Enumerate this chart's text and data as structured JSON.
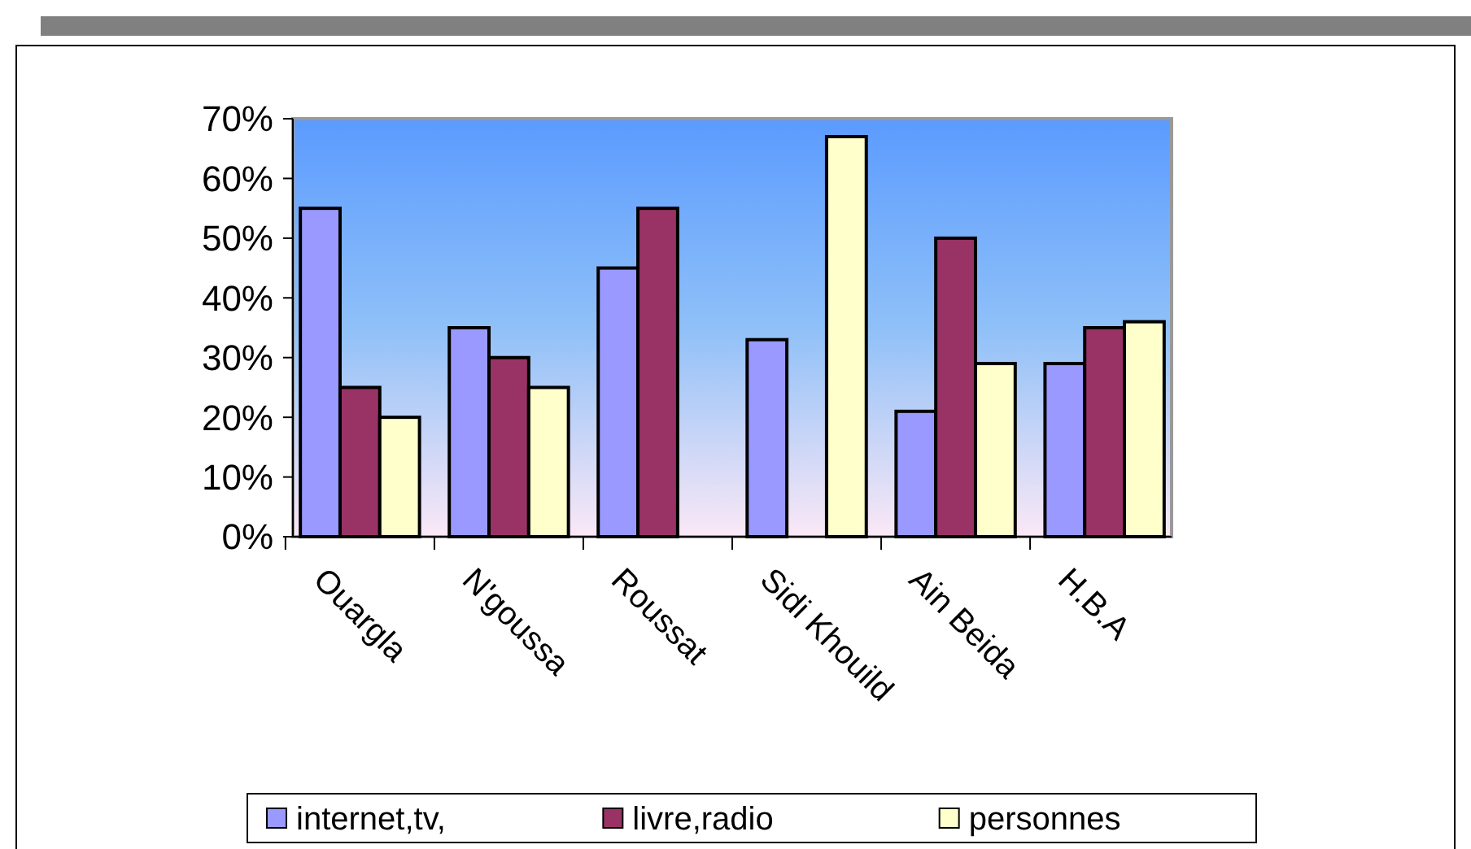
{
  "chart_data": {
    "type": "bar",
    "categories": [
      "Ouargla",
      "N'goussa",
      "Roussat",
      "Sidi Khouild",
      "Ain Beida",
      "H.B.A"
    ],
    "series": [
      {
        "name": "internet,tv,",
        "color": "#9999ff",
        "values": [
          55,
          35,
          45,
          33,
          21,
          29
        ]
      },
      {
        "name": "livre,radio",
        "color": "#993366",
        "values": [
          25,
          30,
          55,
          0,
          50,
          35
        ]
      },
      {
        "name": "personnes",
        "color": "#ffffcc",
        "values": [
          20,
          25,
          0,
          67,
          29,
          36
        ]
      }
    ],
    "ylim": [
      0,
      70
    ],
    "yticks": [
      {
        "value": 0,
        "label": "0%"
      },
      {
        "value": 10,
        "label": "10%"
      },
      {
        "value": 20,
        "label": "20%"
      },
      {
        "value": 30,
        "label": "30%"
      },
      {
        "value": 40,
        "label": "40%"
      },
      {
        "value": 50,
        "label": "50%"
      },
      {
        "value": 60,
        "label": "60%"
      },
      {
        "value": 70,
        "label": "70%"
      }
    ],
    "grid": false,
    "legend": "bottom"
  }
}
